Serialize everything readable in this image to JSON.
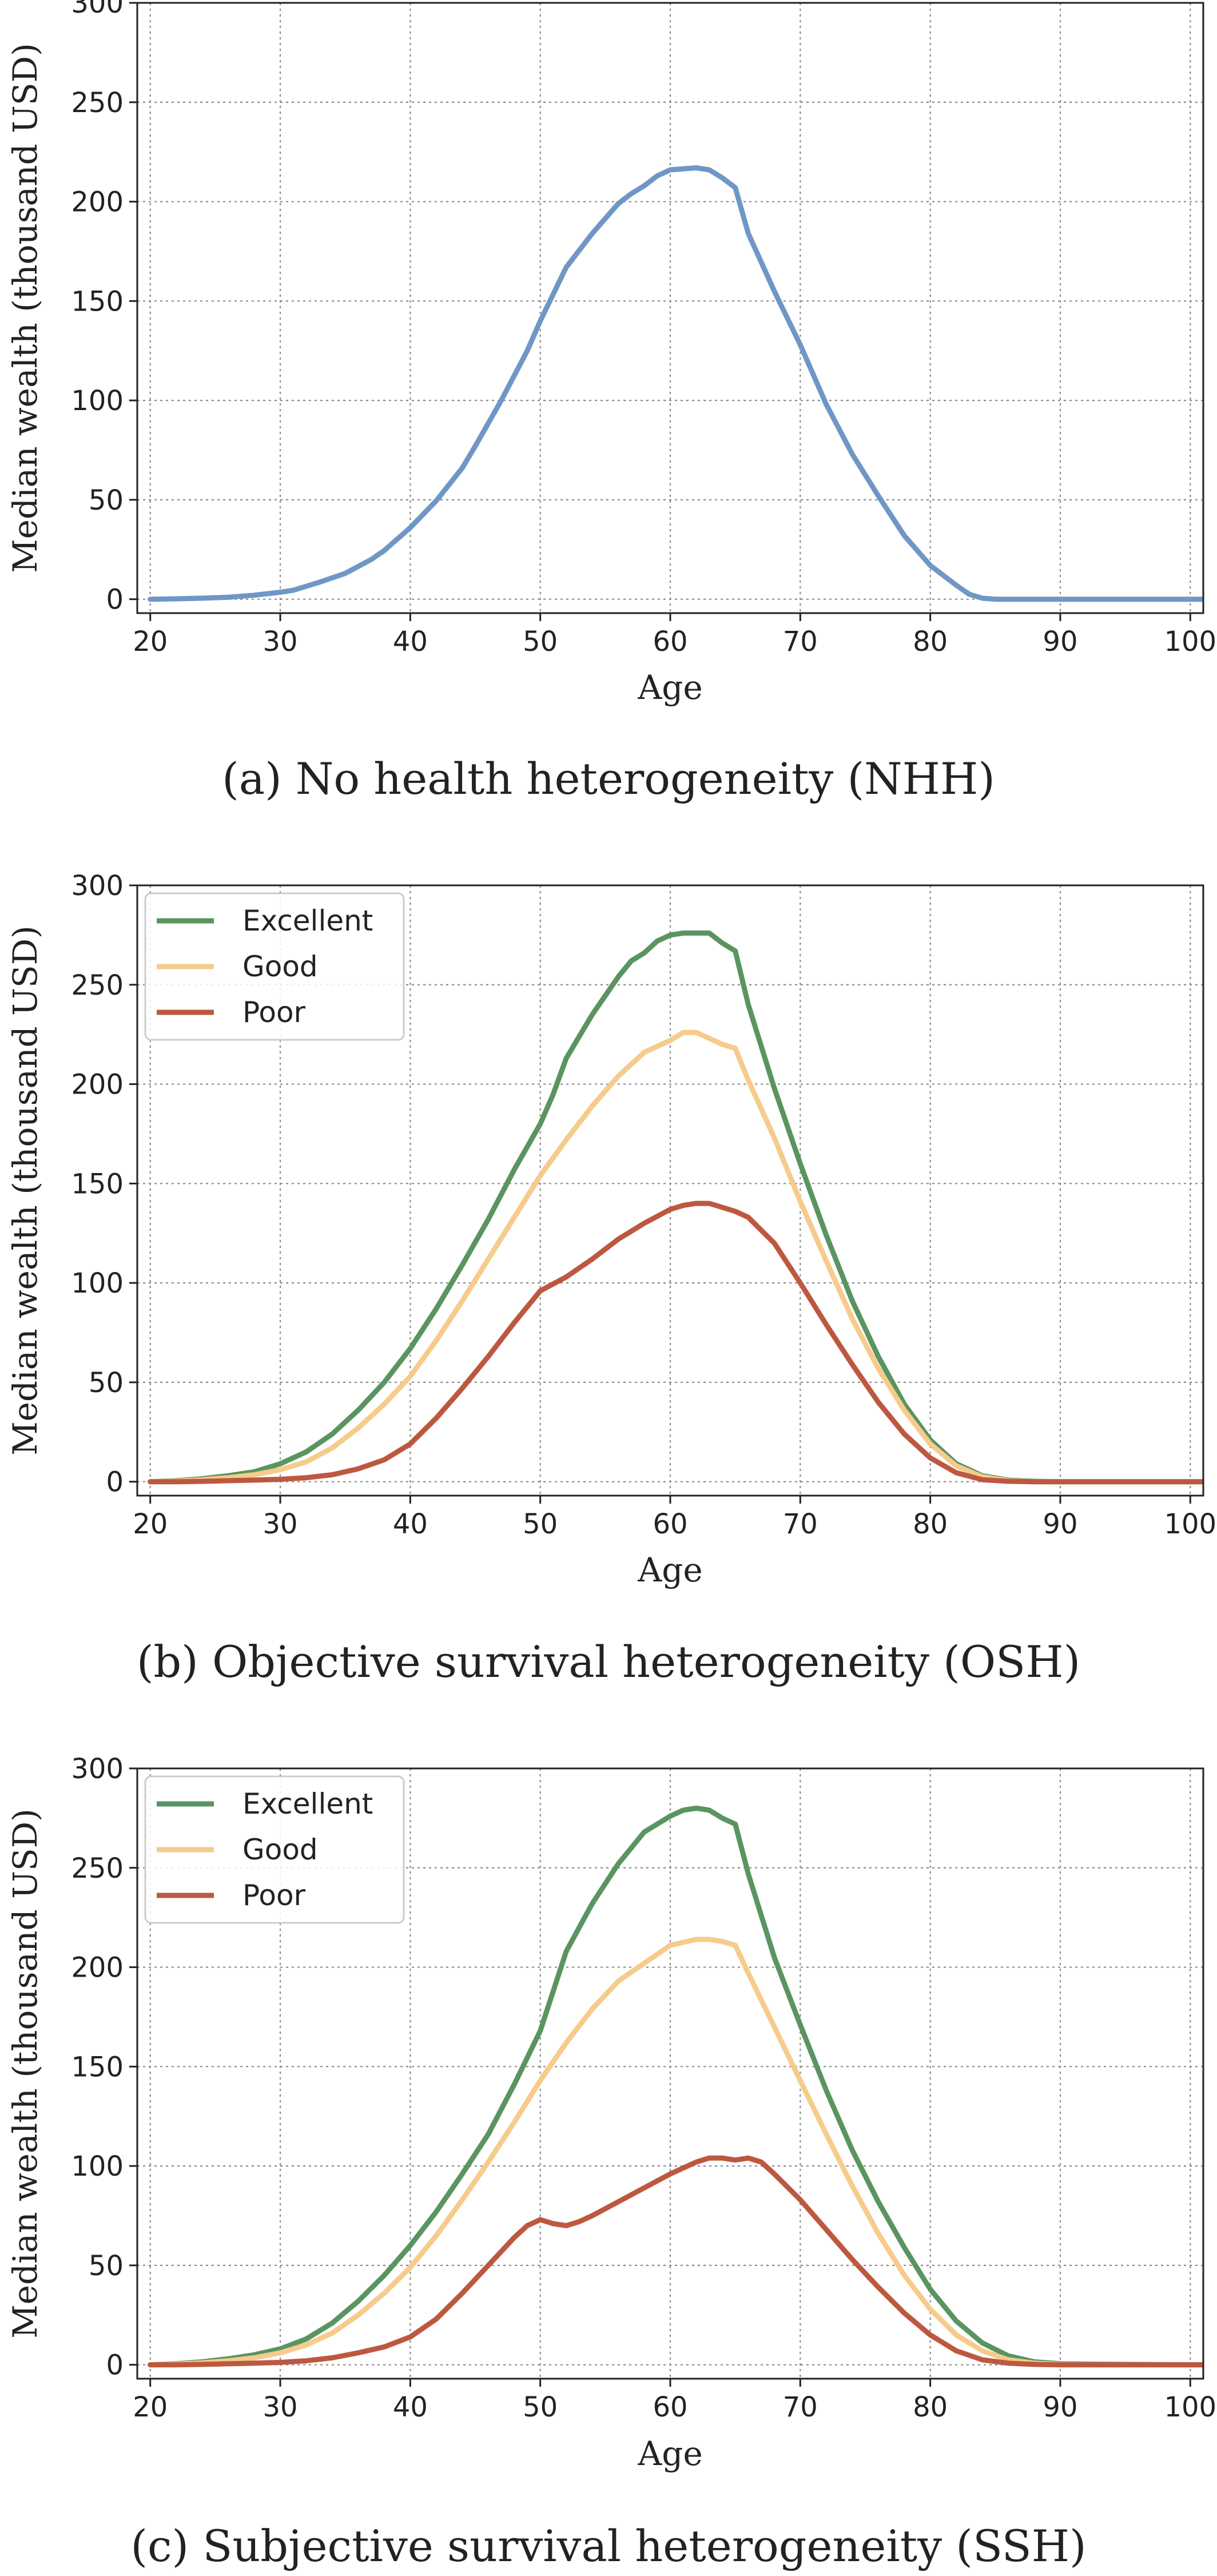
{
  "colors": {
    "single": "#6f97c6",
    "Excellent": "#5a9460",
    "Good": "#f6cb8c",
    "Poor": "#bd5840"
  },
  "chart_data": [
    {
      "type": "line",
      "caption": "(a) No health heterogeneity (NHH)",
      "xlabel": "Age",
      "ylabel": "Median wealth (thousand USD)",
      "xlim": [
        19,
        101
      ],
      "ylim": [
        -7,
        300
      ],
      "xticks": [
        20,
        30,
        40,
        50,
        60,
        70,
        80,
        90,
        100
      ],
      "yticks": [
        0,
        50,
        100,
        150,
        200,
        250,
        300
      ],
      "grid": true,
      "legend": null,
      "series": [
        {
          "color_key": "single",
          "x": [
            20,
            22,
            24,
            26,
            28,
            30,
            31,
            33,
            35,
            37,
            38,
            40,
            42,
            44,
            45,
            47,
            49,
            50,
            52,
            54,
            56,
            57,
            58,
            59,
            60,
            62,
            63,
            64,
            65,
            66,
            68,
            70,
            72,
            74,
            76,
            78,
            80,
            82,
            83,
            84,
            85,
            86,
            88,
            90,
            95,
            101
          ],
          "y": [
            0,
            0.2,
            0.5,
            1,
            2,
            3.5,
            4.5,
            8.5,
            13,
            20,
            24.5,
            36,
            49.5,
            66,
            77,
            100,
            125,
            140,
            167,
            184,
            199,
            204,
            208,
            213,
            216,
            217,
            216,
            212,
            207,
            184,
            155,
            128,
            98,
            73,
            52,
            32,
            17,
            7,
            2.5,
            0.5,
            0,
            0,
            0,
            0,
            0,
            0
          ]
        }
      ]
    },
    {
      "type": "line",
      "caption": "(b) Objective survival heterogeneity (OSH)",
      "xlabel": "Age",
      "ylabel": "Median wealth (thousand USD)",
      "xlim": [
        19,
        101
      ],
      "ylim": [
        -7,
        300
      ],
      "xticks": [
        20,
        30,
        40,
        50,
        60,
        70,
        80,
        90,
        100
      ],
      "yticks": [
        0,
        50,
        100,
        150,
        200,
        250,
        300
      ],
      "grid": true,
      "legend": "top-left",
      "series": [
        {
          "name": "Excellent",
          "color_key": "Excellent",
          "x": [
            20,
            22,
            24,
            26,
            28,
            30,
            32,
            34,
            36,
            38,
            40,
            42,
            44,
            46,
            48,
            50,
            51,
            52,
            54,
            56,
            57,
            58,
            59,
            60,
            61,
            62,
            63,
            64,
            65,
            66,
            68,
            70,
            72,
            74,
            76,
            78,
            80,
            82,
            84,
            86,
            88,
            90,
            95,
            101
          ],
          "y": [
            0,
            0.5,
            1.5,
            3,
            5,
            9,
            15,
            24,
            36,
            50,
            67,
            87,
            109,
            132,
            157,
            180,
            195,
            213,
            235,
            254,
            262,
            266,
            272,
            275,
            276,
            276,
            276,
            271,
            267,
            240,
            198,
            160,
            124,
            91,
            63,
            39,
            21,
            9,
            3,
            0.8,
            0.2,
            0,
            0,
            0
          ]
        },
        {
          "name": "Good",
          "color_key": "Good",
          "x": [
            20,
            22,
            24,
            26,
            28,
            30,
            32,
            34,
            36,
            38,
            40,
            42,
            44,
            46,
            48,
            50,
            52,
            54,
            56,
            58,
            60,
            61,
            62,
            63,
            64,
            65,
            66,
            68,
            70,
            72,
            74,
            76,
            78,
            80,
            82,
            84,
            86,
            88,
            90,
            95,
            101
          ],
          "y": [
            0,
            0.3,
            1,
            2,
            3.5,
            6,
            10,
            17,
            27,
            39,
            53,
            71,
            91,
            112,
            133,
            154,
            172,
            189,
            204,
            216,
            222,
            226,
            226,
            223,
            220,
            218,
            202,
            173,
            141,
            111,
            82,
            57,
            36,
            19,
            8,
            2.5,
            0.5,
            0,
            0,
            0,
            0
          ]
        },
        {
          "name": "Poor",
          "color_key": "Poor",
          "x": [
            20,
            22,
            24,
            26,
            28,
            30,
            32,
            34,
            36,
            38,
            40,
            42,
            44,
            46,
            48,
            50,
            52,
            54,
            56,
            58,
            60,
            61,
            62,
            63,
            64,
            65,
            66,
            68,
            70,
            72,
            74,
            76,
            78,
            80,
            82,
            84,
            86,
            88,
            90,
            95,
            101
          ],
          "y": [
            0,
            0,
            0.2,
            0.5,
            0.8,
            1.2,
            2,
            3.5,
            6.5,
            11,
            19,
            32,
            47,
            63,
            80,
            96,
            103,
            112,
            122,
            130,
            137,
            139,
            140,
            140,
            138,
            136,
            133,
            120,
            100,
            79,
            59,
            40,
            24,
            12,
            4.5,
            1,
            0.2,
            0,
            0,
            0,
            0
          ]
        }
      ]
    },
    {
      "type": "line",
      "caption": "(c) Subjective survival heterogeneity (SSH)",
      "xlabel": "Age",
      "ylabel": "Median wealth (thousand USD)",
      "xlim": [
        19,
        101
      ],
      "ylim": [
        -7,
        300
      ],
      "xticks": [
        20,
        30,
        40,
        50,
        60,
        70,
        80,
        90,
        100
      ],
      "yticks": [
        0,
        50,
        100,
        150,
        200,
        250,
        300
      ],
      "grid": true,
      "legend": "top-left",
      "series": [
        {
          "name": "Excellent",
          "color_key": "Excellent",
          "x": [
            20,
            22,
            24,
            26,
            28,
            30,
            32,
            34,
            36,
            38,
            40,
            42,
            44,
            46,
            48,
            50,
            52,
            54,
            56,
            58,
            60,
            61,
            62,
            63,
            64,
            65,
            66,
            68,
            70,
            72,
            74,
            76,
            78,
            80,
            82,
            84,
            86,
            88,
            90,
            92,
            95,
            101
          ],
          "y": [
            0,
            0.5,
            1.5,
            3,
            5,
            8,
            13,
            21,
            32,
            45,
            60,
            77,
            96,
            116,
            141,
            168,
            208,
            232,
            252,
            268,
            276,
            279,
            280,
            279,
            275,
            272,
            247,
            205,
            171,
            138,
            108,
            82,
            59,
            38,
            22,
            11,
            4.5,
            1.5,
            0.5,
            0.3,
            0.2,
            0
          ]
        },
        {
          "name": "Good",
          "color_key": "Good",
          "x": [
            20,
            22,
            24,
            26,
            28,
            30,
            32,
            34,
            36,
            38,
            40,
            42,
            44,
            46,
            48,
            50,
            52,
            54,
            56,
            58,
            60,
            62,
            63,
            64,
            65,
            66,
            68,
            70,
            72,
            74,
            76,
            78,
            80,
            82,
            84,
            86,
            88,
            90,
            92,
            95,
            101
          ],
          "y": [
            0,
            0.3,
            1,
            2,
            3.5,
            6,
            10,
            16,
            25,
            36,
            49,
            65,
            83,
            102,
            122,
            143,
            162,
            179,
            193,
            202,
            211,
            214,
            214,
            213,
            211,
            197,
            170,
            143,
            116,
            90,
            66,
            45,
            28,
            15,
            7,
            2.5,
            0.8,
            0.2,
            0,
            0,
            0
          ]
        },
        {
          "name": "Poor",
          "color_key": "Poor",
          "x": [
            20,
            22,
            24,
            26,
            28,
            30,
            32,
            34,
            36,
            38,
            40,
            42,
            44,
            46,
            48,
            49,
            50,
            51,
            52,
            53,
            54,
            56,
            58,
            60,
            62,
            63,
            64,
            65,
            66,
            67,
            68,
            70,
            72,
            74,
            76,
            78,
            80,
            82,
            84,
            86,
            88,
            90,
            92,
            95,
            101
          ],
          "y": [
            0,
            0,
            0.2,
            0.5,
            0.8,
            1.2,
            2,
            3.5,
            6,
            9,
            14,
            23,
            36,
            50,
            64,
            70,
            73,
            71,
            70,
            72,
            75,
            82,
            89,
            96,
            102,
            104,
            104,
            103,
            104,
            102,
            96,
            83,
            68,
            53,
            39,
            26,
            15,
            7,
            2.5,
            0.8,
            0.2,
            0,
            0,
            0,
            0
          ]
        }
      ]
    }
  ]
}
